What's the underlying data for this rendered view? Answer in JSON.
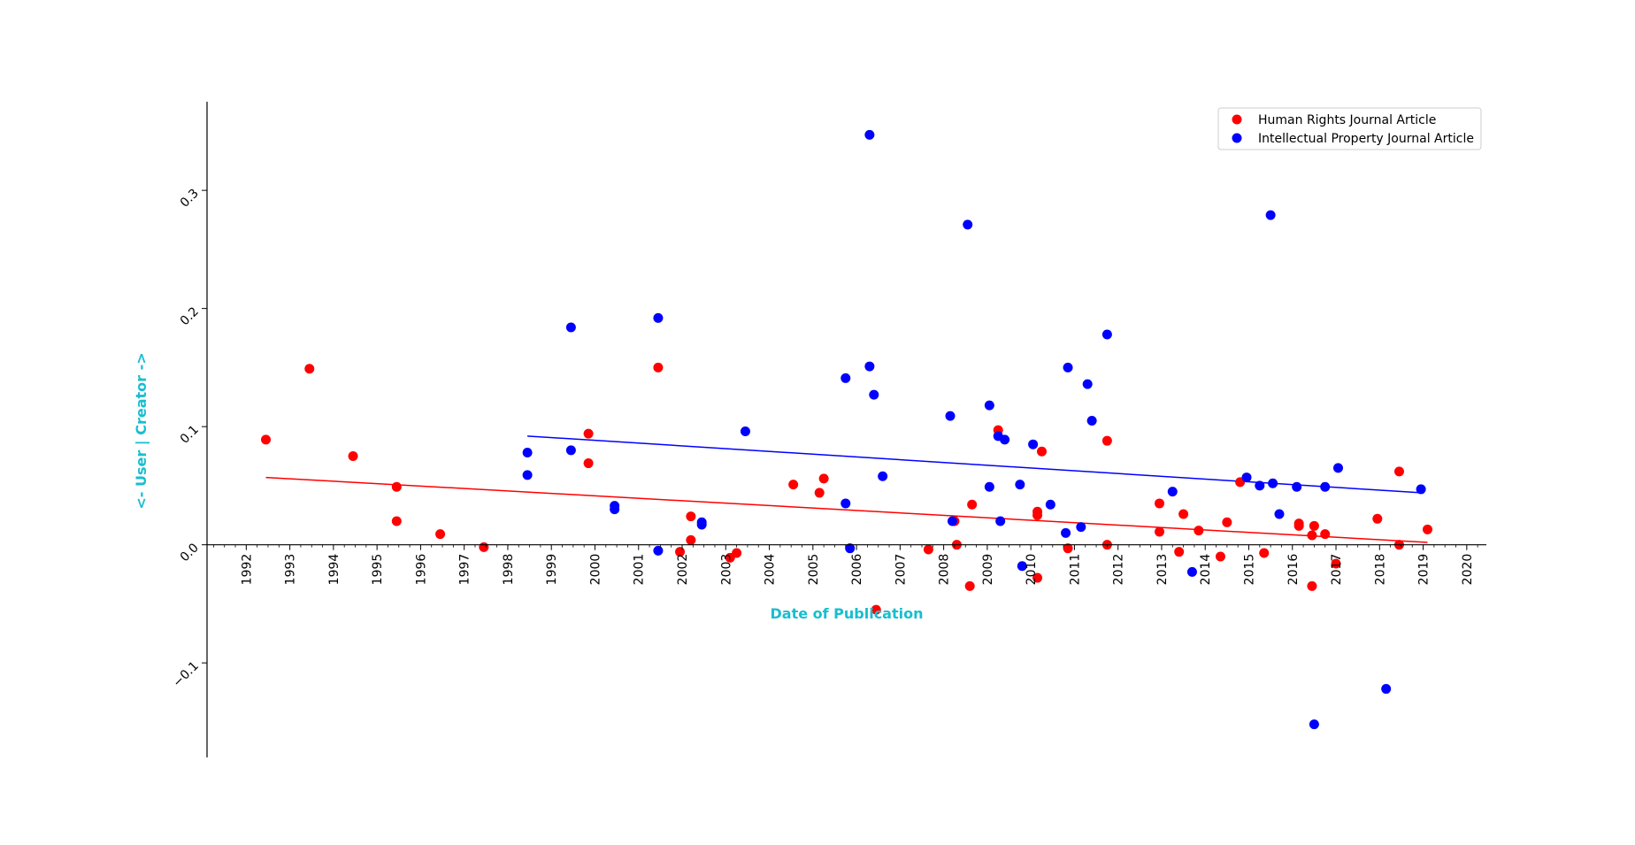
{
  "chart_data": {
    "type": "scatter",
    "title": "",
    "xlabel": "Date of Publication",
    "ylabel": "<- User | Creator ->",
    "xlim": [
      1991.1,
      2020.45
    ],
    "ylim": [
      -0.18,
      0.375
    ],
    "x_ticks": [
      1992,
      1993,
      1994,
      1995,
      1996,
      1997,
      1998,
      1999,
      2000,
      2001,
      2002,
      2003,
      2004,
      2005,
      2006,
      2007,
      2008,
      2009,
      2010,
      2011,
      2012,
      2013,
      2014,
      2015,
      2016,
      2017,
      2018,
      2019,
      2020
    ],
    "x_tick_labels": [
      "1992",
      "1993",
      "1994",
      "1995",
      "1996",
      "1997",
      "1998",
      "1999",
      "2000",
      "2001",
      "2002",
      "2003",
      "2004",
      "2005",
      "2006",
      "2007",
      "2008",
      "2009",
      "2010",
      "2011",
      "2012",
      "2013",
      "2014",
      "2015",
      "2016",
      "2017",
      "2018",
      "2019",
      "2020"
    ],
    "y_ticks": [
      -0.1,
      0.0,
      0.1,
      0.2,
      0.3
    ],
    "y_tick_labels": [
      "−0.1",
      "0.0",
      "0.1",
      "0.2",
      "0.3"
    ],
    "grid": false,
    "legend_position": "top-right",
    "axis_title_color": "#17becf",
    "series": [
      {
        "name": "Human Rights Journal Article",
        "color": "#ff0000",
        "points": [
          [
            1992.45,
            0.089
          ],
          [
            1993.45,
            0.149
          ],
          [
            1994.45,
            0.075
          ],
          [
            1995.45,
            0.049
          ],
          [
            1995.45,
            0.02
          ],
          [
            1996.45,
            0.009
          ],
          [
            1997.45,
            -0.002
          ],
          [
            1999.85,
            0.094
          ],
          [
            1999.85,
            0.069
          ],
          [
            2001.45,
            0.15
          ],
          [
            2001.95,
            -0.006
          ],
          [
            2002.2,
            0.024
          ],
          [
            2002.2,
            0.004
          ],
          [
            2003.1,
            -0.011
          ],
          [
            2003.25,
            -0.007
          ],
          [
            2004.55,
            0.051
          ],
          [
            2005.15,
            0.044
          ],
          [
            2005.25,
            0.056
          ],
          [
            2006.45,
            -0.055
          ],
          [
            2007.65,
            -0.004
          ],
          [
            2008.25,
            0.02
          ],
          [
            2008.3,
            0.0
          ],
          [
            2008.6,
            -0.035
          ],
          [
            2008.65,
            0.034
          ],
          [
            2009.25,
            0.097
          ],
          [
            2010.15,
            0.028
          ],
          [
            2010.15,
            0.025
          ],
          [
            2010.15,
            -0.028
          ],
          [
            2010.25,
            0.079
          ],
          [
            2010.85,
            -0.003
          ],
          [
            2011.75,
            0.088
          ],
          [
            2011.75,
            0.0
          ],
          [
            2012.95,
            0.035
          ],
          [
            2012.95,
            0.011
          ],
          [
            2013.4,
            -0.006
          ],
          [
            2013.5,
            0.026
          ],
          [
            2013.85,
            0.012
          ],
          [
            2014.35,
            -0.01
          ],
          [
            2014.5,
            0.019
          ],
          [
            2014.8,
            0.053
          ],
          [
            2015.35,
            -0.007
          ],
          [
            2016.15,
            0.018
          ],
          [
            2016.15,
            0.016
          ],
          [
            2016.45,
            0.008
          ],
          [
            2016.45,
            -0.035
          ],
          [
            2016.5,
            0.016
          ],
          [
            2016.75,
            0.009
          ],
          [
            2017.0,
            -0.016
          ],
          [
            2017.95,
            0.022
          ],
          [
            2018.45,
            0.062
          ],
          [
            2018.45,
            0.0
          ],
          [
            2019.1,
            0.013
          ]
        ],
        "trend": [
          [
            1992.45,
            0.057
          ],
          [
            2019.1,
            0.002
          ]
        ]
      },
      {
        "name": "Intellectual Property Journal Article",
        "color": "#0000ff",
        "points": [
          [
            1998.45,
            0.078
          ],
          [
            1998.45,
            0.059
          ],
          [
            1999.45,
            0.184
          ],
          [
            1999.45,
            0.08
          ],
          [
            2000.45,
            0.033
          ],
          [
            2000.45,
            0.03
          ],
          [
            2001.45,
            0.192
          ],
          [
            2001.45,
            -0.005
          ],
          [
            2002.45,
            0.019
          ],
          [
            2002.45,
            0.017
          ],
          [
            2003.45,
            0.096
          ],
          [
            2005.75,
            0.141
          ],
          [
            2005.75,
            0.035
          ],
          [
            2005.85,
            -0.003
          ],
          [
            2006.3,
            0.347
          ],
          [
            2006.3,
            0.151
          ],
          [
            2006.4,
            0.127
          ],
          [
            2006.6,
            0.058
          ],
          [
            2008.15,
            0.109
          ],
          [
            2008.2,
            0.02
          ],
          [
            2008.55,
            0.271
          ],
          [
            2009.05,
            0.118
          ],
          [
            2009.05,
            0.049
          ],
          [
            2009.25,
            0.092
          ],
          [
            2009.3,
            0.02
          ],
          [
            2009.4,
            0.089
          ],
          [
            2009.75,
            0.051
          ],
          [
            2009.8,
            -0.018
          ],
          [
            2010.05,
            0.085
          ],
          [
            2010.45,
            0.034
          ],
          [
            2010.8,
            0.01
          ],
          [
            2010.85,
            0.15
          ],
          [
            2011.15,
            0.015
          ],
          [
            2011.3,
            0.136
          ],
          [
            2011.4,
            0.105
          ],
          [
            2011.75,
            0.178
          ],
          [
            2013.25,
            0.045
          ],
          [
            2013.7,
            -0.023
          ],
          [
            2014.95,
            0.057
          ],
          [
            2015.25,
            0.05
          ],
          [
            2015.5,
            0.279
          ],
          [
            2015.55,
            0.052
          ],
          [
            2015.7,
            0.026
          ],
          [
            2016.1,
            0.049
          ],
          [
            2016.5,
            -0.152
          ],
          [
            2016.75,
            0.049
          ],
          [
            2017.05,
            0.065
          ],
          [
            2018.15,
            -0.122
          ],
          [
            2018.95,
            0.047
          ]
        ],
        "trend": [
          [
            1998.45,
            0.092
          ],
          [
            2018.95,
            0.044
          ]
        ]
      }
    ]
  }
}
